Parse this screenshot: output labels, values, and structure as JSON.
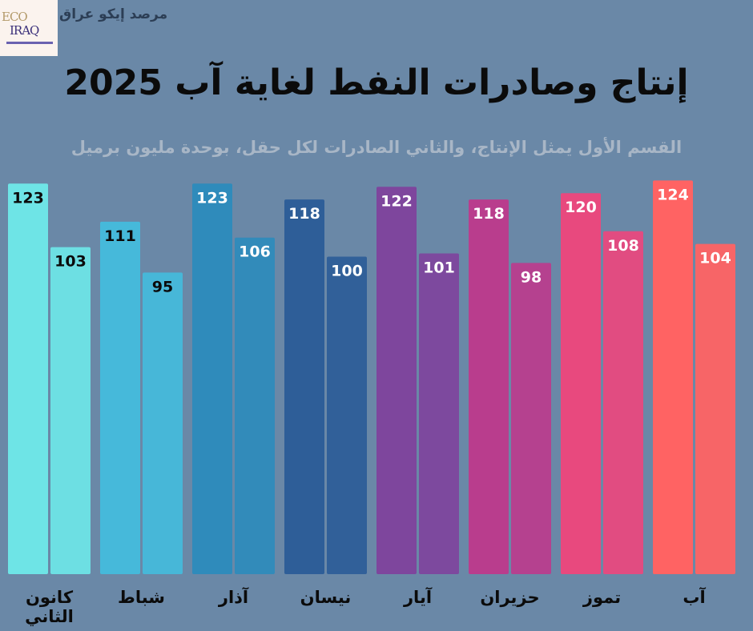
{
  "brand": {
    "logo_text": "ECO IRAQ",
    "name": "مرصد إيكو عراق"
  },
  "chart_data": {
    "type": "bar",
    "title": "إنتاج وصادرات النفط لغاية آب 2025",
    "subtitle": "القسم الأول يمثل الإنتاج، والثاني الصادرات لكل حقل، بوحدة مليون برميل",
    "categories": [
      "كانون الثاني",
      "شباط",
      "آذار",
      "نيسان",
      "آيار",
      "حزيران",
      "تموز",
      "آب"
    ],
    "series": [
      {
        "values": [
          123,
          111,
          123,
          118,
          122,
          118,
          120,
          124
        ]
      },
      {
        "values": [
          103,
          95,
          106,
          100,
          101,
          98,
          108,
          104
        ]
      }
    ],
    "colors": [
      "#6ee4e6",
      "#46b9da",
      "#2f8bbb",
      "#2e5e98",
      "#7e469d",
      "#b93d8d",
      "#e8497e",
      "#ff6363"
    ],
    "label_colors": [
      "#0b0b0b",
      "#0b0b0b",
      "#ffffff",
      "#ffffff",
      "#ffffff",
      "#ffffff",
      "#ffffff",
      "#ffffff"
    ],
    "ylim": [
      0,
      124
    ],
    "grid": false,
    "legend": "none"
  }
}
